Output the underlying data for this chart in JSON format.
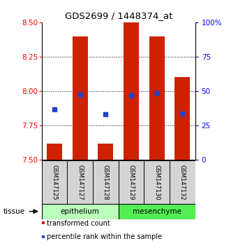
{
  "title": "GDS2699 / 1448374_at",
  "samples": [
    "GSM147125",
    "GSM147127",
    "GSM147128",
    "GSM147129",
    "GSM147130",
    "GSM147132"
  ],
  "bar_bottoms": [
    7.5,
    7.5,
    7.5,
    7.5,
    7.5,
    7.5
  ],
  "bar_tops": [
    7.62,
    8.4,
    7.62,
    8.5,
    8.4,
    8.1
  ],
  "percentile_values": [
    7.87,
    7.975,
    7.83,
    7.97,
    7.985,
    7.84
  ],
  "bar_color": "#cc2200",
  "dot_color": "#2244cc",
  "ylim_left": [
    7.5,
    8.5
  ],
  "ylim_right": [
    0,
    100
  ],
  "yticks_left": [
    7.5,
    7.75,
    8.0,
    8.25,
    8.5
  ],
  "yticks_right": [
    0,
    25,
    50,
    75,
    100
  ],
  "ytick_labels_right": [
    "0",
    "25",
    "50",
    "75",
    "100%"
  ],
  "grid_values": [
    7.75,
    8.0,
    8.25
  ],
  "epithelium_color": "#bbffbb",
  "mesenchyme_color": "#55ee55",
  "tissue_label": "tissue",
  "legend_items": [
    "transformed count",
    "percentile rank within the sample"
  ],
  "bar_width": 0.6
}
